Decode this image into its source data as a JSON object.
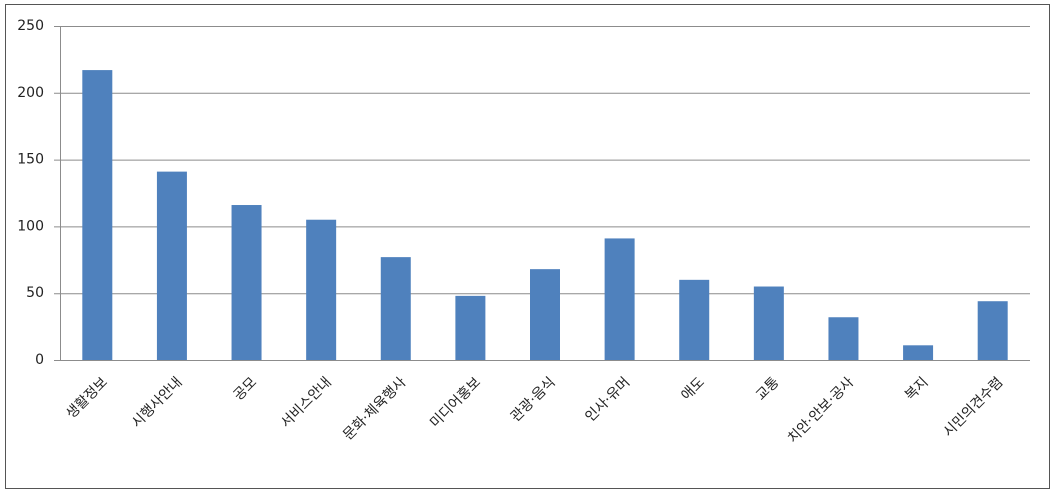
{
  "chart_data": {
    "type": "bar",
    "categories": [
      "생활정보",
      "시행사안내",
      "공모",
      "서비스안내",
      "문화·체육행사",
      "미디어홍보",
      "관광·음식",
      "인사·유머",
      "애도",
      "교통",
      "치안·안보·공사",
      "복지",
      "시민의견수렴"
    ],
    "values": [
      217,
      141,
      116,
      105,
      77,
      48,
      68,
      91,
      60,
      55,
      32,
      11,
      44
    ],
    "color": "#4f81bd",
    "ylim": [
      0,
      250
    ],
    "yticks": [
      0,
      50,
      100,
      150,
      200,
      250
    ],
    "grid": true
  }
}
